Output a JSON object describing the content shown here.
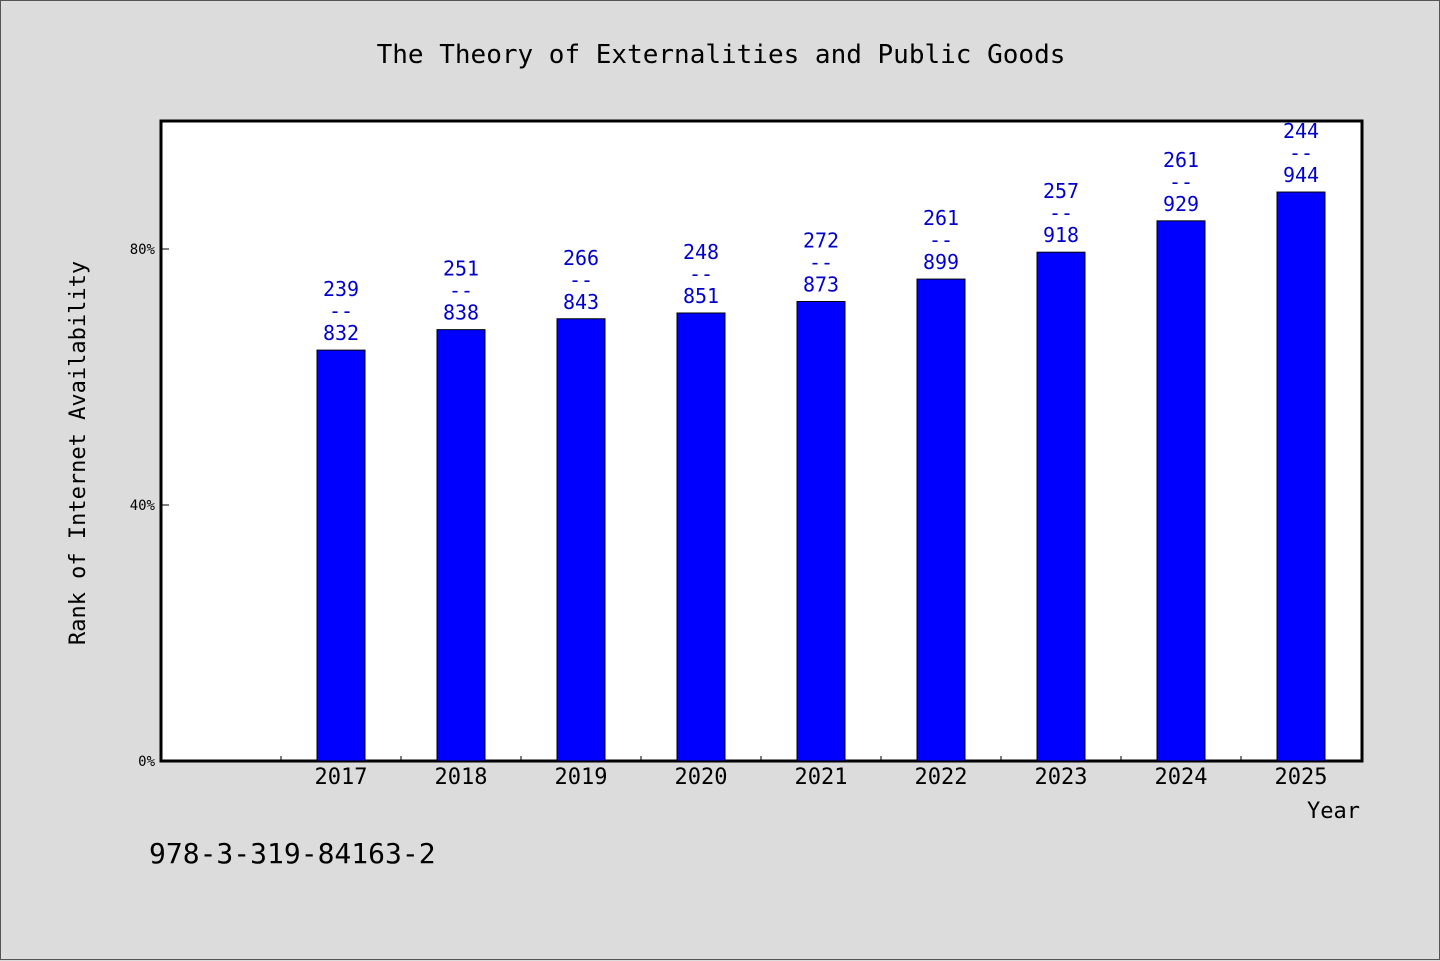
{
  "chart_data": {
    "type": "bar",
    "title": "The Theory of Externalities and Public Goods",
    "xlabel": "Year",
    "ylabel": "Rank of Internet Availability",
    "categories": [
      "2017",
      "2018",
      "2019",
      "2020",
      "2021",
      "2022",
      "2023",
      "2024",
      "2025"
    ],
    "values": [
      64.2,
      67.4,
      69.1,
      70.0,
      71.8,
      75.3,
      79.5,
      84.4,
      88.9
    ],
    "data_labels": [
      [
        "239",
        "--",
        "832"
      ],
      [
        "251",
        "--",
        "838"
      ],
      [
        "266",
        "--",
        "843"
      ],
      [
        "248",
        "--",
        "851"
      ],
      [
        "272",
        "--",
        "873"
      ],
      [
        "261",
        "--",
        "899"
      ],
      [
        "257",
        "--",
        "918"
      ],
      [
        "261",
        "--",
        "929"
      ],
      [
        "244",
        "--",
        "944"
      ]
    ],
    "yticks": [
      0,
      40,
      80
    ],
    "ytick_labels": [
      "0%",
      "40%",
      "80%"
    ],
    "ylim": [
      0,
      100
    ],
    "grid": false,
    "bar_color": "#0000ff",
    "label_color": "#0000cc",
    "plot_background": "#ffffff",
    "page_background": "#dcdcdc"
  },
  "footer": {
    "isbn": "978-3-319-84163-2"
  }
}
